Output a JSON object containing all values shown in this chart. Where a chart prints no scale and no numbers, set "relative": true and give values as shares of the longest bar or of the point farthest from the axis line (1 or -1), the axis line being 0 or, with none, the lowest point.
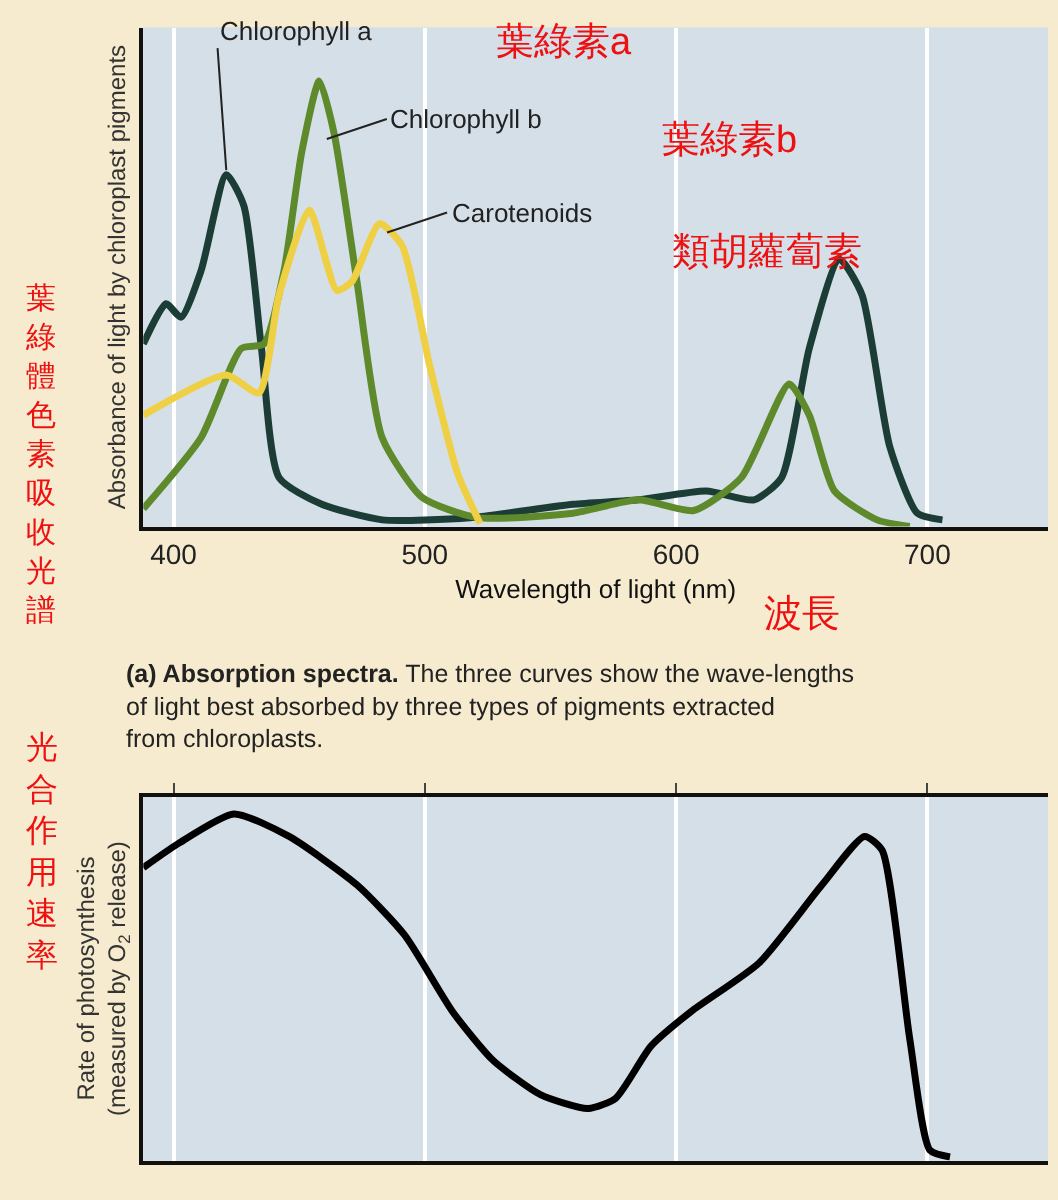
{
  "chart_data": [
    {
      "type": "line",
      "relative": true,
      "ylabel": "Absorbance of light by chloroplast pigments",
      "xlabel": "Wavelength of light (nm)",
      "xlim": [
        388,
        748
      ],
      "xticks": [
        400,
        500,
        600,
        700
      ],
      "grid": "x",
      "tick_labels": "x",
      "series": [
        {
          "name": "Chlorophyll a",
          "color": "#1b3d35",
          "x": [
            388,
            397,
            403,
            411,
            421,
            428,
            435,
            442,
            459,
            483,
            518,
            559,
            585,
            612,
            631,
            642,
            653,
            665,
            674,
            685,
            696,
            706
          ],
          "values": [
            0.41,
            0.5,
            0.47,
            0.575,
            0.79,
            0.72,
            0.4,
            0.11,
            0.05,
            0.015,
            0.02,
            0.05,
            0.06,
            0.08,
            0.06,
            0.11,
            0.4,
            0.6,
            0.52,
            0.18,
            0.03,
            0.015
          ]
        },
        {
          "name": "Chlorophyll b",
          "color": "#5e8a2c",
          "x": [
            388,
            411,
            427,
            436,
            444,
            451,
            458,
            464,
            473,
            483,
            499,
            521,
            559,
            585,
            607,
            626,
            645,
            653,
            663,
            680,
            693
          ],
          "values": [
            0.04,
            0.2,
            0.4,
            0.41,
            0.575,
            0.84,
            1.0,
            0.88,
            0.55,
            0.2,
            0.065,
            0.02,
            0.03,
            0.06,
            0.036,
            0.11,
            0.32,
            0.25,
            0.08,
            0.015,
            0
          ]
        },
        {
          "name": "Carotenoids",
          "color": "#efd044",
          "x": [
            388,
            421,
            434,
            442,
            454,
            465,
            471,
            482,
            491,
            502,
            513,
            522
          ],
          "values": [
            0.25,
            0.34,
            0.3,
            0.52,
            0.71,
            0.53,
            0.55,
            0.68,
            0.63,
            0.36,
            0.12,
            0.007
          ]
        }
      ],
      "annotations": [
        "葉綠素a",
        "葉綠素b",
        "類胡蘿蔔素",
        "波長",
        "葉綠體色素吸收光譜",
        "(a) Absorption spectra. The three curves show the wave-lengths of light best absorbed by three types of pigments extracted from chloroplasts."
      ]
    },
    {
      "type": "line",
      "relative": true,
      "ylabel": "Rate of photosynthesis (measured by O$_{2}$ release)",
      "xlim": [
        388,
        748
      ],
      "xticks": [
        {
          "value": 400,
          "label": null
        },
        {
          "value": 500,
          "label": null
        },
        {
          "value": 600,
          "label": null
        },
        {
          "value": 700,
          "label": null
        }
      ],
      "grid": "x",
      "tick_labels": false,
      "series": [
        {
          "color": "#000000",
          "x": [
            388,
            402,
            424,
            446,
            473,
            492,
            511,
            527,
            546,
            565,
            576,
            590,
            606,
            633,
            658,
            675,
            682,
            693,
            701,
            709
          ],
          "values": [
            0.845,
            0.915,
            1.0,
            0.935,
            0.795,
            0.65,
            0.43,
            0.29,
            0.19,
            0.15,
            0.18,
            0.33,
            0.43,
            0.57,
            0.795,
            0.935,
            0.895,
            0.35,
            0.03,
            0.01
          ]
        }
      ],
      "annotations": [
        "光合作用速率"
      ]
    }
  ]
}
